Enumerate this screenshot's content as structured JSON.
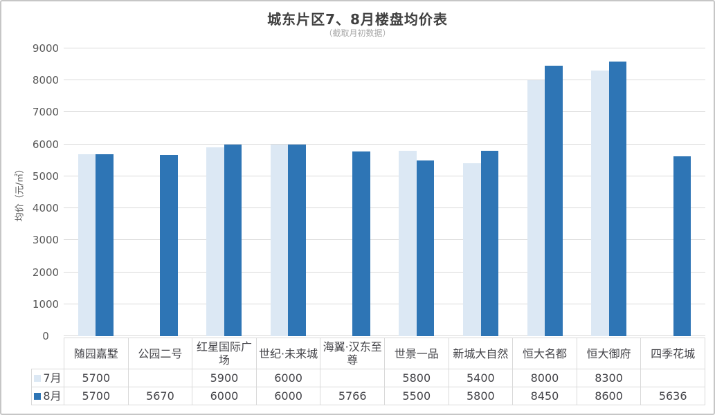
{
  "chart_data": {
    "type": "bar",
    "title": "城东片区7、8月楼盘均价表",
    "subtitle": "（截取月初数据）",
    "xlabel": "",
    "ylabel": "均价（元/㎡）",
    "ylim": [
      0,
      9000
    ],
    "ytick_step": 1000,
    "grid": true,
    "legend_position": "table-row-headers",
    "categories": [
      "随园嘉墅",
      "公园二号",
      "红星国际广场",
      "世纪·未来城",
      "海翼·汉东至尊",
      "世景一品",
      "新城大自然",
      "恒大名都",
      "恒大御府",
      "四季花城"
    ],
    "series": [
      {
        "key": "july",
        "name": "7月",
        "color": "#dce8f4",
        "values": [
          5700,
          null,
          5900,
          6000,
          null,
          5800,
          5400,
          8000,
          8300,
          null
        ]
      },
      {
        "key": "august",
        "name": "8月",
        "color": "#2e75b5",
        "values": [
          5700,
          5670,
          6000,
          6000,
          5766,
          5500,
          5800,
          8450,
          8600,
          5636
        ]
      }
    ]
  },
  "colors": {
    "july_bar": "#dce8f4",
    "august_bar": "#2e75b5",
    "gridline": "#d9d9d9",
    "table_border": "#d9d9d9",
    "axis_text": "#595959",
    "title_text": "#404040",
    "subtitle_text": "#a8a8a8",
    "canvas_border": "#c6c6c6"
  }
}
